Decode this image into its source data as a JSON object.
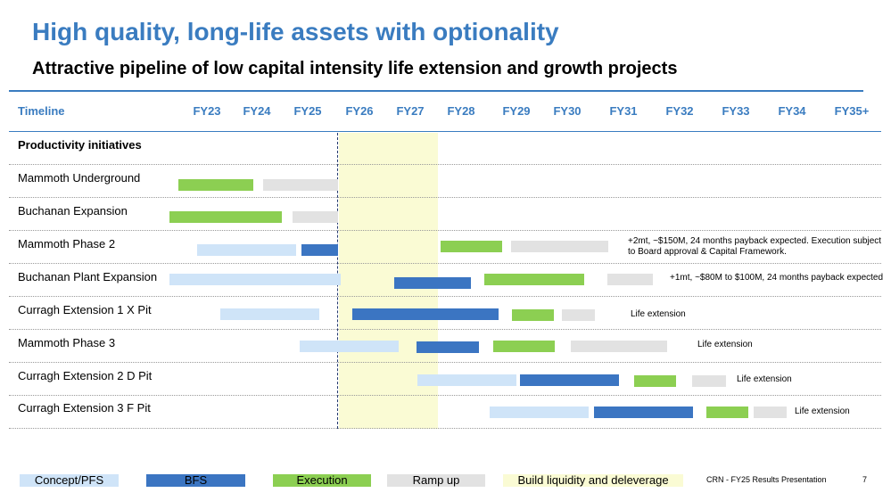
{
  "title": "High quality, long-life assets with optionality",
  "subtitle": "Attractive pipeline of low capital intensity life extension and growth projects",
  "timeline": {
    "header": "Timeline",
    "years": [
      "FY23",
      "FY24",
      "FY25",
      "FY26",
      "FY27",
      "FY28",
      "FY29",
      "FY30",
      "FY31",
      "FY32",
      "FY33",
      "FY34",
      "FY35+"
    ]
  },
  "section_header": "Productivity initiatives",
  "rows": [
    {
      "label": "Mammoth Underground"
    },
    {
      "label": "Buchanan Expansion"
    },
    {
      "label": "Mammoth Phase 2",
      "note": "+2mt, ~$150M, 24 months payback expected.  Execution subject to Board approval & Capital Framework."
    },
    {
      "label": "Buchanan Plant Expansion",
      "note": "+1mt, ~$80M to $100M, 24 months payback expected"
    },
    {
      "label": "Curragh Extension 1 X Pit",
      "note": "Life extension"
    },
    {
      "label": "Mammoth Phase 3",
      "note": "Life extension"
    },
    {
      "label": "Curragh Extension 2 D Pit",
      "note": "Life extension"
    },
    {
      "label": "Curragh Extension 3 F Pit",
      "note": "Life extension"
    }
  ],
  "legend": {
    "concept": "Concept/PFS",
    "bfs": "BFS",
    "execution": "Execution",
    "ramp": "Ramp up",
    "build": "Build liquidity and deleverage"
  },
  "colors": {
    "concept": "#cfe4f8",
    "bfs": "#3b75c2",
    "execution": "#8ccf52",
    "ramp": "#e2e2e2",
    "build": "#fafbd4",
    "accent": "#3a7cc0"
  },
  "footer": {
    "text": "CRN - FY25 Results Presentation",
    "page": "7"
  }
}
